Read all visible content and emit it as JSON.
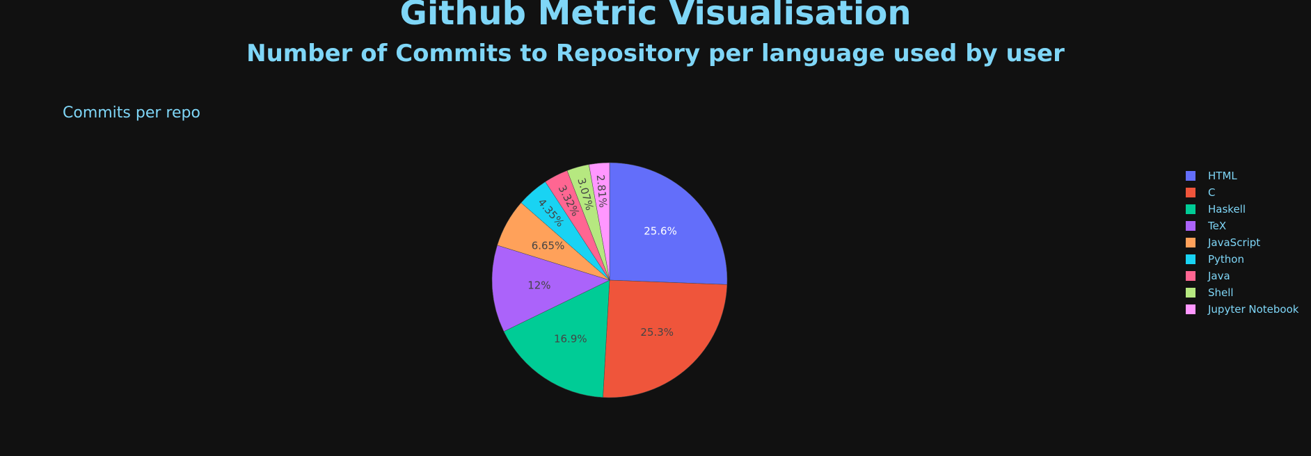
{
  "header": {
    "title": "Github Metric Visualisation",
    "subtitle": "Number of Commits to Repository per language used by user"
  },
  "chart_data": {
    "type": "pie",
    "title": "Commits per repo",
    "labels": [
      "HTML",
      "C",
      "Haskell",
      "TeX",
      "JavaScript",
      "Python",
      "Java",
      "Shell",
      "Jupyter Notebook"
    ],
    "values": [
      25.6,
      25.3,
      16.9,
      12,
      6.65,
      4.35,
      3.32,
      3.07,
      2.81
    ],
    "value_labels": [
      "25.6%",
      "25.3%",
      "16.9%",
      "12%",
      "6.65%",
      "4.35%",
      "3.32%",
      "3.07%",
      "2.81%"
    ],
    "colors": [
      "#636efa",
      "#ef553b",
      "#00cc96",
      "#ab63fa",
      "#ffa15a",
      "#19d3f3",
      "#ff6692",
      "#b6e880",
      "#ff97ff"
    ],
    "legend_position": "right",
    "direction": "clockwise",
    "start": "top"
  },
  "colors": {
    "background": "#111111",
    "text": "#7fd6f7"
  }
}
